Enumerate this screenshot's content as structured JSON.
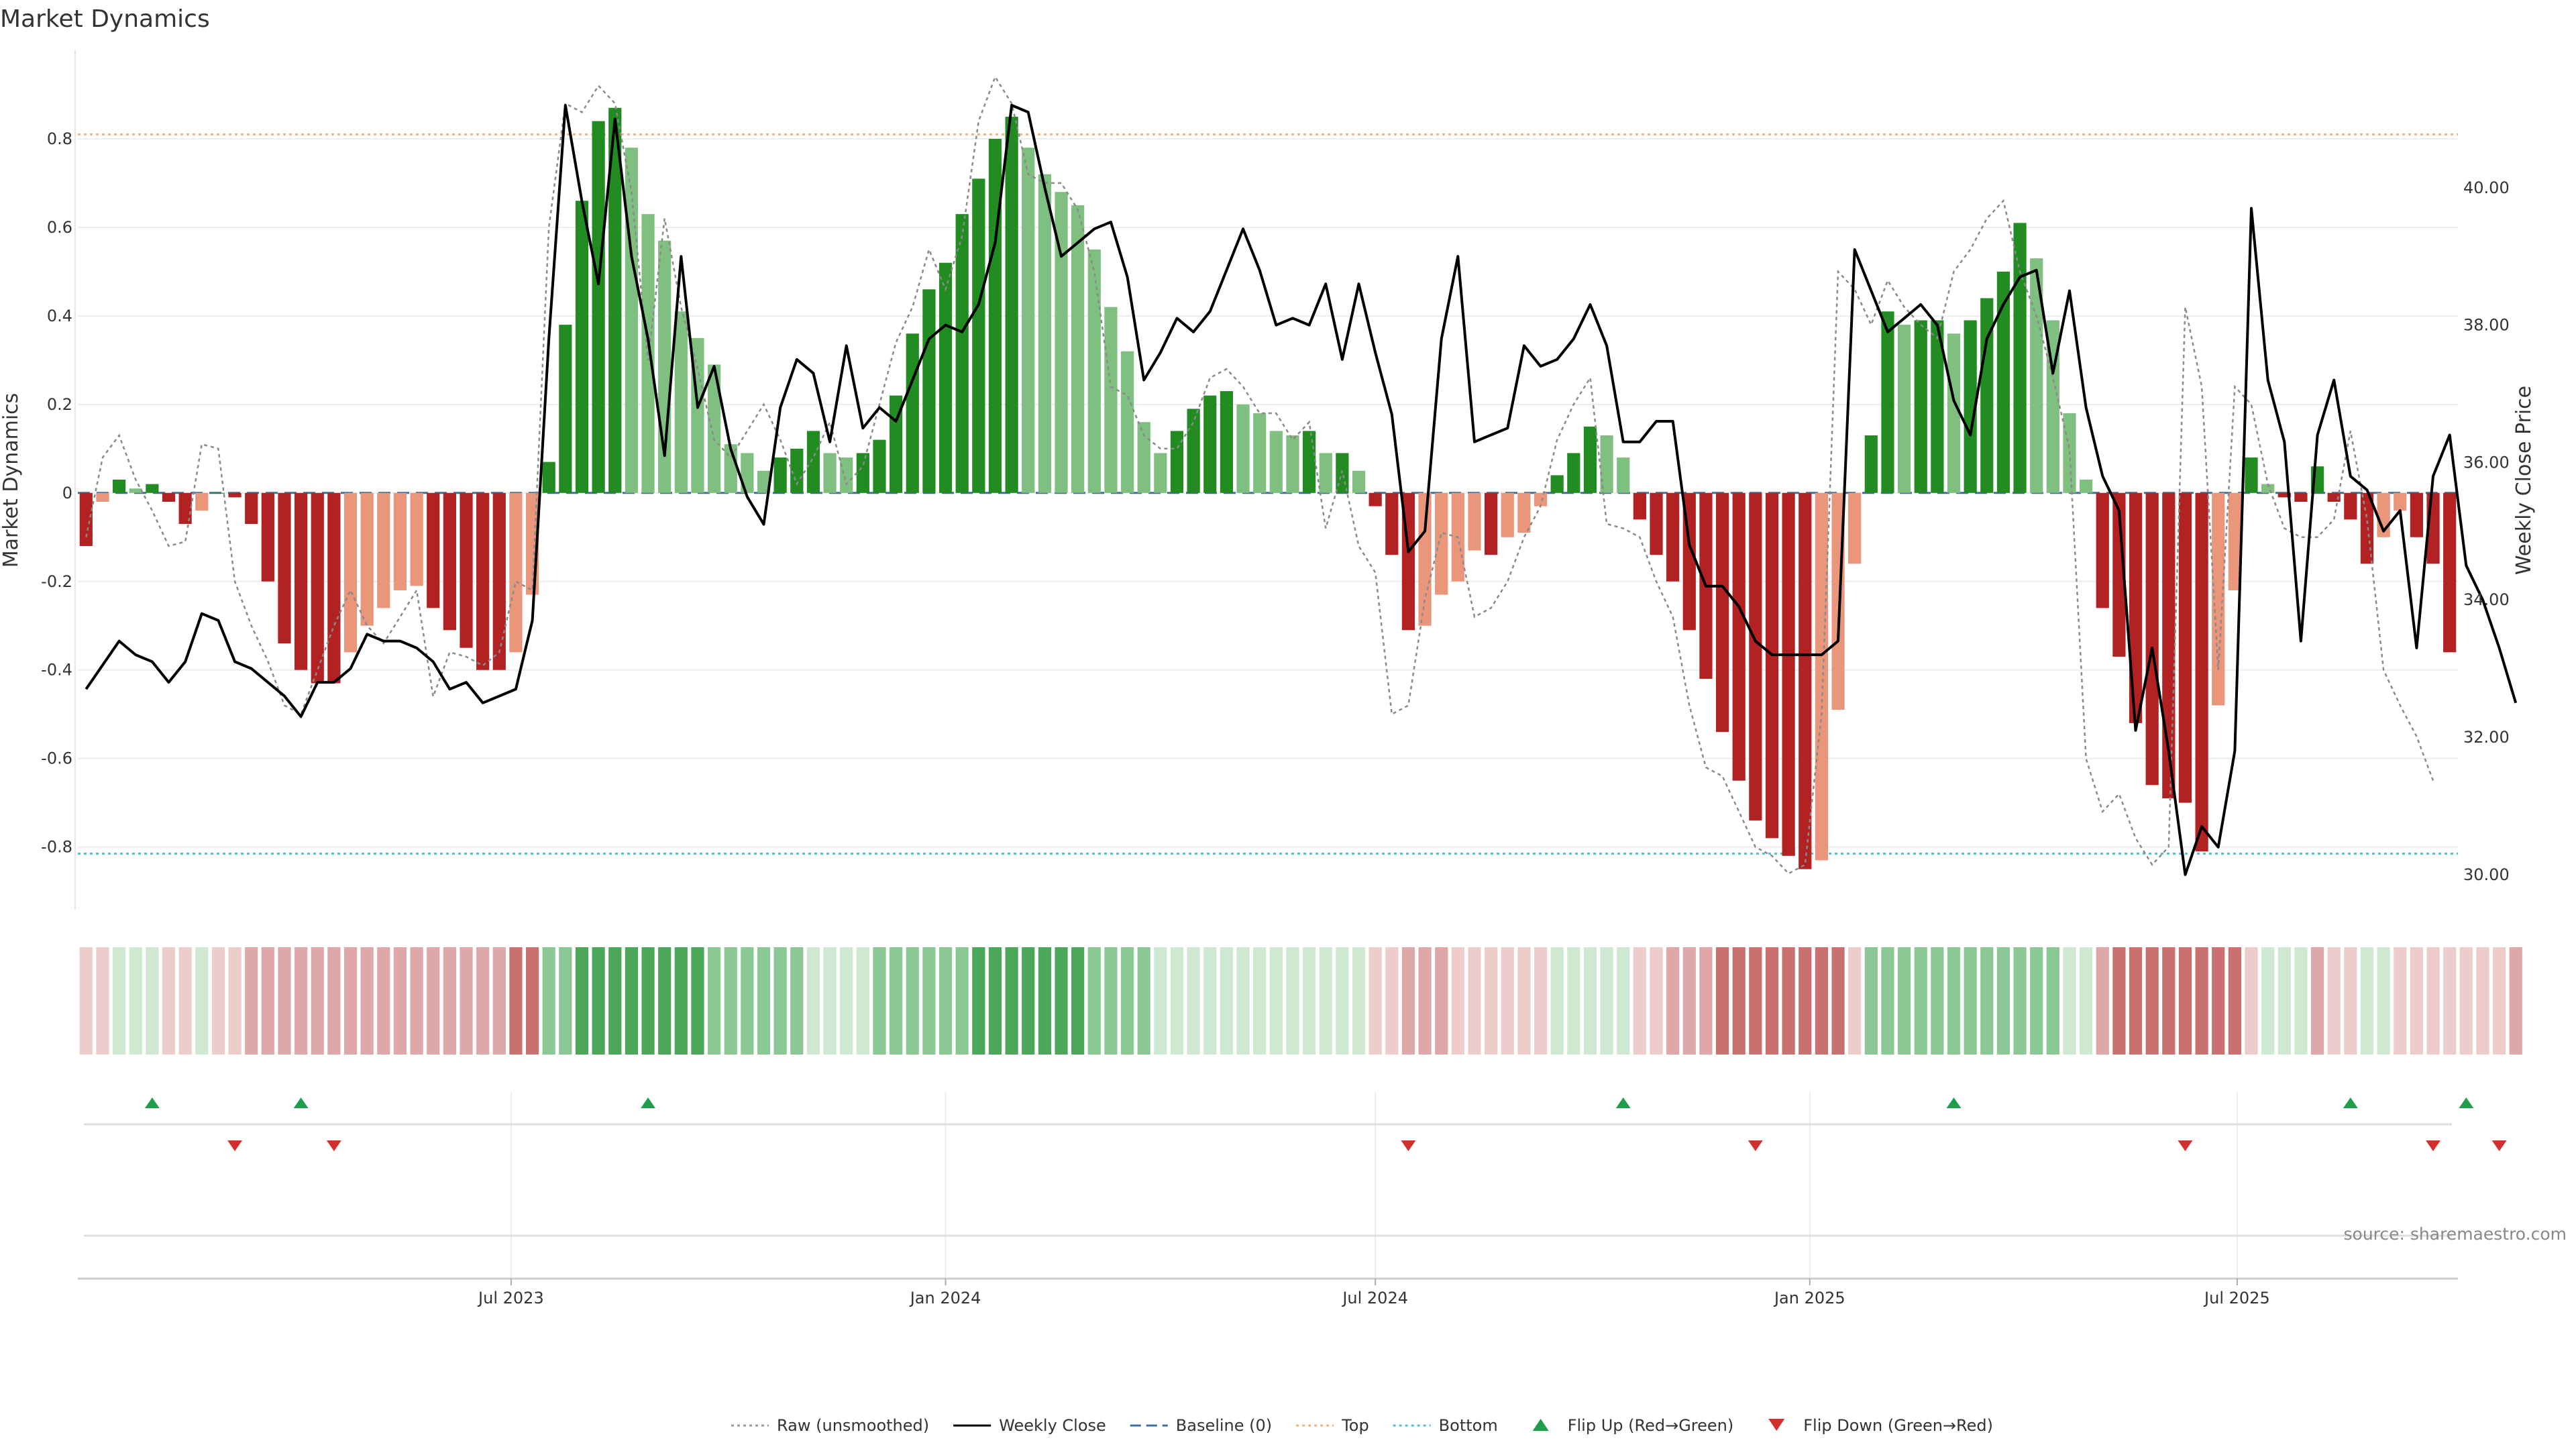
{
  "chart_data": {
    "type": "bar",
    "title": "Market Dynamics",
    "ylabel": "Market Dynamics",
    "y2label": "Weekly Close Price",
    "ylim": [
      -0.94,
      1.0
    ],
    "y2lim": [
      29.5,
      42.0
    ],
    "yticks": [
      "-0.8",
      "-0.6",
      "-0.4",
      "-0.2",
      "0",
      "0.2",
      "0.4",
      "0.6",
      "0.8"
    ],
    "y2ticks": [
      "30.00",
      "32.00",
      "34.00",
      "36.00",
      "38.00",
      "40.00"
    ],
    "x_start": "2023-01-02",
    "x_end": "2025-10-27",
    "xticks": [
      {
        "label": "Jul 2023",
        "date": "2023-07-01"
      },
      {
        "label": "Jan 2024",
        "date": "2024-01-01"
      },
      {
        "label": "Jul 2024",
        "date": "2024-07-01"
      },
      {
        "label": "Jan 2025",
        "date": "2025-01-01"
      },
      {
        "label": "Jul 2025",
        "date": "2025-07-01"
      }
    ],
    "top_line": 0.81,
    "bottom_line": -0.815,
    "baseline": 0,
    "grid": true,
    "legend_position": "bottom-center",
    "values": [
      -0.12,
      -0.02,
      0.03,
      0.01,
      0.02,
      -0.02,
      -0.07,
      -0.04,
      0,
      -0.01,
      -0.07,
      -0.2,
      -0.34,
      -0.4,
      -0.43,
      -0.43,
      -0.36,
      -0.3,
      -0.26,
      -0.22,
      -0.21,
      -0.26,
      -0.31,
      -0.35,
      -0.4,
      -0.4,
      -0.36,
      -0.23,
      0.07,
      0.38,
      0.66,
      0.84,
      0.87,
      0.78,
      0.63,
      0.57,
      0.41,
      0.35,
      0.29,
      0.11,
      0.09,
      0.05,
      0.08,
      0.1,
      0.14,
      0.09,
      0.08,
      0.09,
      0.12,
      0.22,
      0.36,
      0.46,
      0.52,
      0.63,
      0.71,
      0.8,
      0.85,
      0.78,
      0.72,
      0.68,
      0.65,
      0.55,
      0.42,
      0.32,
      0.16,
      0.09,
      0.14,
      0.19,
      0.22,
      0.23,
      0.2,
      0.18,
      0.14,
      0.13,
      0.14,
      0.09,
      0.09,
      0.05,
      -0.03,
      -0.14,
      -0.31,
      -0.3,
      -0.23,
      -0.2,
      -0.13,
      -0.14,
      -0.1,
      -0.09,
      -0.03,
      0.04,
      0.09,
      0.15,
      0.13,
      0.08,
      -0.06,
      -0.14,
      -0.2,
      -0.31,
      -0.42,
      -0.54,
      -0.65,
      -0.74,
      -0.78,
      -0.82,
      -0.85,
      -0.83,
      -0.49,
      -0.16,
      0.13,
      0.41,
      0.38,
      0.39,
      0.39,
      0.36,
      0.39,
      0.44,
      0.5,
      0.61,
      0.53,
      0.39,
      0.18,
      0.03,
      -0.26,
      -0.37,
      -0.52,
      -0.66,
      -0.69,
      -0.7,
      -0.81,
      -0.48,
      -0.22,
      0.08,
      0.02,
      -0.01,
      -0.02,
      0.06,
      -0.02,
      -0.06,
      -0.16,
      -0.1,
      -0.04,
      -0.1,
      -0.16,
      -0.36
    ],
    "band_states": [
      "rl",
      "rl",
      "gl",
      "gl",
      "gl",
      "rl",
      "rl",
      "gl",
      "rl",
      "rl",
      "rm",
      "rm",
      "rm",
      "rm",
      "rm",
      "rm",
      "rm",
      "rm",
      "rm",
      "rm",
      "rm",
      "rm",
      "rm",
      "rm",
      "rm",
      "rm",
      "rd",
      "rd",
      "gm",
      "gm",
      "gd",
      "gd",
      "gd",
      "gd",
      "gd",
      "gd",
      "gd",
      "gd",
      "gm",
      "gm",
      "gm",
      "gm",
      "gm",
      "gm",
      "gl",
      "gl",
      "gl",
      "gl",
      "gm",
      "gm",
      "gm",
      "gm",
      "gm",
      "gm",
      "gd",
      "gd",
      "gd",
      "gd",
      "gd",
      "gd",
      "gd",
      "gm",
      "gm",
      "gm",
      "gm",
      "gl",
      "gl",
      "gl",
      "gl",
      "gl",
      "gl",
      "gl",
      "gl",
      "gl",
      "gl",
      "gl",
      "gl",
      "gl",
      "rl",
      "rl",
      "rm",
      "rm",
      "rm",
      "rl",
      "rl",
      "rl",
      "rl",
      "rl",
      "rl",
      "gl",
      "gl",
      "gl",
      "gl",
      "gl",
      "rl",
      "rl",
      "rm",
      "rm",
      "rm",
      "rd",
      "rd",
      "rd",
      "rd",
      "rd",
      "rd",
      "rd",
      "rd",
      "rl",
      "gm",
      "gm",
      "gm",
      "gm",
      "gm",
      "gm",
      "gm",
      "gm",
      "gm",
      "gm",
      "gm",
      "gm",
      "gl",
      "gl",
      "rm",
      "rd",
      "rd",
      "rd",
      "rd",
      "rd",
      "rd",
      "rd",
      "rd",
      "rl",
      "gl",
      "gl",
      "gl",
      "rm",
      "rl",
      "rl",
      "gl",
      "gl",
      "rl",
      "rl",
      "rl",
      "rl",
      "rl",
      "rl",
      "rl",
      "rm"
    ],
    "weekly_close": [
      [
        0,
        32.7
      ],
      [
        2,
        33.4
      ],
      [
        3,
        33.2
      ],
      [
        4,
        33.1
      ],
      [
        5,
        32.8
      ],
      [
        6,
        33.1
      ],
      [
        7,
        33.8
      ],
      [
        8,
        33.7
      ],
      [
        9,
        33.1
      ],
      [
        10,
        33.0
      ],
      [
        12,
        32.6
      ],
      [
        13,
        32.3
      ],
      [
        14,
        32.8
      ],
      [
        15,
        32.8
      ],
      [
        16,
        33.0
      ],
      [
        17,
        33.5
      ],
      [
        18,
        33.4
      ],
      [
        19,
        33.4
      ],
      [
        20,
        33.3
      ],
      [
        21,
        33.1
      ],
      [
        22,
        32.7
      ],
      [
        23,
        32.8
      ],
      [
        24,
        32.5
      ],
      [
        25,
        32.6
      ],
      [
        26,
        32.7
      ],
      [
        27,
        33.7
      ],
      [
        28,
        37.8
      ],
      [
        29,
        41.2
      ],
      [
        30,
        39.8
      ],
      [
        31,
        38.6
      ],
      [
        32,
        41.0
      ],
      [
        33,
        39.0
      ],
      [
        34,
        37.8
      ],
      [
        35,
        36.1
      ],
      [
        36,
        39.0
      ],
      [
        37,
        36.8
      ],
      [
        38,
        37.4
      ],
      [
        39,
        36.2
      ],
      [
        40,
        35.5
      ],
      [
        41,
        35.1
      ],
      [
        42,
        36.8
      ],
      [
        43,
        37.5
      ],
      [
        44,
        37.3
      ],
      [
        45,
        36.3
      ],
      [
        46,
        37.7
      ],
      [
        47,
        36.5
      ],
      [
        48,
        36.8
      ],
      [
        49,
        36.6
      ],
      [
        50,
        37.2
      ],
      [
        51,
        37.8
      ],
      [
        52,
        38.0
      ],
      [
        53,
        37.9
      ],
      [
        54,
        38.3
      ],
      [
        55,
        39.2
      ],
      [
        56,
        41.2
      ],
      [
        57,
        41.1
      ],
      [
        58,
        40.0
      ],
      [
        59,
        39.0
      ],
      [
        60,
        39.2
      ],
      [
        61,
        39.4
      ],
      [
        62,
        39.5
      ],
      [
        63,
        38.7
      ],
      [
        64,
        37.2
      ],
      [
        65,
        37.6
      ],
      [
        66,
        38.1
      ],
      [
        67,
        37.9
      ],
      [
        68,
        38.2
      ],
      [
        69,
        38.8
      ],
      [
        70,
        39.4
      ],
      [
        71,
        38.8
      ],
      [
        72,
        38.0
      ],
      [
        73,
        38.1
      ],
      [
        74,
        38.0
      ],
      [
        75,
        38.6
      ],
      [
        76,
        37.5
      ],
      [
        77,
        38.6
      ],
      [
        78,
        37.6
      ],
      [
        79,
        36.7
      ],
      [
        80,
        34.7
      ],
      [
        81,
        35.0
      ],
      [
        82,
        37.8
      ],
      [
        83,
        39.0
      ],
      [
        84,
        36.3
      ],
      [
        85,
        36.4
      ],
      [
        86,
        36.5
      ],
      [
        87,
        37.7
      ],
      [
        88,
        37.4
      ],
      [
        89,
        37.5
      ],
      [
        90,
        37.8
      ],
      [
        91,
        38.3
      ],
      [
        92,
        37.7
      ],
      [
        93,
        36.3
      ],
      [
        94,
        36.3
      ],
      [
        95,
        36.6
      ],
      [
        96,
        36.6
      ],
      [
        97,
        34.8
      ],
      [
        98,
        34.2
      ],
      [
        99,
        34.2
      ],
      [
        100,
        33.9
      ],
      [
        101,
        33.4
      ],
      [
        102,
        33.2
      ],
      [
        103,
        33.2
      ],
      [
        104,
        33.2
      ],
      [
        105,
        33.2
      ],
      [
        106,
        33.4
      ],
      [
        107,
        39.1
      ],
      [
        108,
        38.5
      ],
      [
        109,
        37.9
      ],
      [
        110,
        38.1
      ],
      [
        111,
        38.3
      ],
      [
        112,
        38.0
      ],
      [
        113,
        36.9
      ],
      [
        114,
        36.4
      ],
      [
        115,
        37.8
      ],
      [
        116,
        38.3
      ],
      [
        117,
        38.7
      ],
      [
        118,
        38.8
      ],
      [
        119,
        37.3
      ],
      [
        120,
        38.5
      ],
      [
        121,
        36.8
      ],
      [
        122,
        35.8
      ],
      [
        123,
        35.3
      ],
      [
        124,
        32.1
      ],
      [
        125,
        33.3
      ],
      [
        126,
        31.8
      ],
      [
        127,
        30.0
      ],
      [
        128,
        30.7
      ],
      [
        129,
        30.4
      ],
      [
        130,
        31.8
      ],
      [
        131,
        39.7
      ],
      [
        132,
        37.2
      ],
      [
        133,
        36.3
      ],
      [
        134,
        33.4
      ],
      [
        135,
        36.4
      ],
      [
        136,
        37.2
      ],
      [
        137,
        35.8
      ],
      [
        138,
        35.6
      ],
      [
        139,
        35.0
      ],
      [
        140,
        35.3
      ],
      [
        141,
        33.3
      ],
      [
        142,
        35.8
      ],
      [
        143,
        36.4
      ],
      [
        144,
        34.5
      ],
      [
        145,
        34.0
      ],
      [
        146,
        33.3
      ],
      [
        147,
        32.5
      ]
    ],
    "raw_unsmoothed": [
      [
        0,
        -0.1
      ],
      [
        1,
        0.08
      ],
      [
        2,
        0.13
      ],
      [
        3,
        0.03
      ],
      [
        4,
        -0.04
      ],
      [
        5,
        -0.12
      ],
      [
        6,
        -0.11
      ],
      [
        7,
        0.11
      ],
      [
        8,
        0.1
      ],
      [
        9,
        -0.2
      ],
      [
        10,
        -0.3
      ],
      [
        11,
        -0.38
      ],
      [
        12,
        -0.48
      ],
      [
        13,
        -0.5
      ],
      [
        14,
        -0.4
      ],
      [
        15,
        -0.3
      ],
      [
        16,
        -0.22
      ],
      [
        17,
        -0.3
      ],
      [
        18,
        -0.34
      ],
      [
        19,
        -0.28
      ],
      [
        20,
        -0.22
      ],
      [
        21,
        -0.46
      ],
      [
        22,
        -0.36
      ],
      [
        23,
        -0.37
      ],
      [
        24,
        -0.39
      ],
      [
        25,
        -0.36
      ],
      [
        26,
        -0.2
      ],
      [
        27,
        -0.22
      ],
      [
        28,
        0.6
      ],
      [
        29,
        0.88
      ],
      [
        30,
        0.86
      ],
      [
        31,
        0.92
      ],
      [
        32,
        0.88
      ],
      [
        33,
        0.68
      ],
      [
        34,
        0.3
      ],
      [
        35,
        0.62
      ],
      [
        36,
        0.42
      ],
      [
        37,
        0.28
      ],
      [
        38,
        0.12
      ],
      [
        39,
        0.08
      ],
      [
        40,
        0.14
      ],
      [
        41,
        0.2
      ],
      [
        42,
        0.12
      ],
      [
        43,
        0.02
      ],
      [
        44,
        0.08
      ],
      [
        45,
        0.16
      ],
      [
        46,
        0.02
      ],
      [
        47,
        0.06
      ],
      [
        48,
        0.2
      ],
      [
        49,
        0.34
      ],
      [
        50,
        0.42
      ],
      [
        51,
        0.55
      ],
      [
        52,
        0.46
      ],
      [
        53,
        0.58
      ],
      [
        54,
        0.84
      ],
      [
        55,
        0.94
      ],
      [
        56,
        0.88
      ],
      [
        57,
        0.72
      ],
      [
        58,
        0.7
      ],
      [
        59,
        0.7
      ],
      [
        60,
        0.64
      ],
      [
        61,
        0.5
      ],
      [
        62,
        0.24
      ],
      [
        63,
        0.22
      ],
      [
        64,
        0.13
      ],
      [
        65,
        0.1
      ],
      [
        66,
        0.1
      ],
      [
        67,
        0.16
      ],
      [
        68,
        0.26
      ],
      [
        69,
        0.28
      ],
      [
        70,
        0.24
      ],
      [
        71,
        0.18
      ],
      [
        72,
        0.18
      ],
      [
        73,
        0.12
      ],
      [
        74,
        0.16
      ],
      [
        75,
        -0.08
      ],
      [
        76,
        0.05
      ],
      [
        77,
        -0.12
      ],
      [
        78,
        -0.18
      ],
      [
        79,
        -0.5
      ],
      [
        80,
        -0.48
      ],
      [
        81,
        -0.24
      ],
      [
        82,
        -0.09
      ],
      [
        83,
        -0.1
      ],
      [
        84,
        -0.28
      ],
      [
        85,
        -0.26
      ],
      [
        86,
        -0.2
      ],
      [
        87,
        -0.1
      ],
      [
        88,
        -0.03
      ],
      [
        89,
        0.12
      ],
      [
        90,
        0.2
      ],
      [
        91,
        0.26
      ],
      [
        92,
        -0.07
      ],
      [
        93,
        -0.08
      ],
      [
        94,
        -0.1
      ],
      [
        95,
        -0.2
      ],
      [
        96,
        -0.28
      ],
      [
        97,
        -0.48
      ],
      [
        98,
        -0.62
      ],
      [
        99,
        -0.64
      ],
      [
        100,
        -0.72
      ],
      [
        101,
        -0.8
      ],
      [
        102,
        -0.82
      ],
      [
        103,
        -0.86
      ],
      [
        104,
        -0.84
      ],
      [
        105,
        -0.5
      ],
      [
        106,
        0.5
      ],
      [
        107,
        0.46
      ],
      [
        108,
        0.38
      ],
      [
        109,
        0.48
      ],
      [
        110,
        0.42
      ],
      [
        111,
        0.38
      ],
      [
        112,
        0.35
      ],
      [
        113,
        0.5
      ],
      [
        114,
        0.55
      ],
      [
        115,
        0.62
      ],
      [
        116,
        0.66
      ],
      [
        117,
        0.5
      ],
      [
        118,
        0.4
      ],
      [
        119,
        0.26
      ],
      [
        120,
        0.1
      ],
      [
        121,
        -0.6
      ],
      [
        122,
        -0.72
      ],
      [
        123,
        -0.68
      ],
      [
        124,
        -0.78
      ],
      [
        125,
        -0.84
      ],
      [
        126,
        -0.8
      ],
      [
        127,
        0.42
      ],
      [
        128,
        0.24
      ],
      [
        129,
        -0.4
      ],
      [
        130,
        0.24
      ],
      [
        131,
        0.2
      ],
      [
        132,
        0.02
      ],
      [
        133,
        -0.08
      ],
      [
        134,
        -0.1
      ],
      [
        135,
        -0.1
      ],
      [
        136,
        -0.06
      ],
      [
        137,
        0.14
      ],
      [
        138,
        -0.06
      ],
      [
        139,
        -0.4
      ],
      [
        140,
        -0.48
      ],
      [
        141,
        -0.55
      ],
      [
        142,
        -0.65
      ]
    ],
    "flip_up_dates": [
      "2023-01-30",
      "2023-04-03",
      "2023-08-28",
      "2024-10-14",
      "2025-03-03",
      "2025-08-18",
      "2025-10-06"
    ],
    "flip_down_dates": [
      "2023-03-06",
      "2023-04-17",
      "2024-07-15",
      "2024-12-09",
      "2025-06-09",
      "2025-09-22",
      "2025-10-20"
    ],
    "legend": [
      {
        "label": "Raw (unsmoothed)",
        "marker": "dotted-line",
        "color": "#999999"
      },
      {
        "label": "Weekly Close",
        "marker": "solid-line",
        "color": "#000000"
      },
      {
        "label": "Baseline (0)",
        "marker": "dashed-line",
        "color": "#3f6f9f"
      },
      {
        "label": "Top",
        "marker": "dotted-line",
        "color": "#f2b27c"
      },
      {
        "label": "Bottom",
        "marker": "dotted-line",
        "color": "#4fc3d6"
      },
      {
        "label": "Flip Up (Red→Green)",
        "marker": "triangle-up",
        "color": "#1e9e4a"
      },
      {
        "label": "Flip Down (Green→Red)",
        "marker": "triangle-down",
        "color": "#d32f2f"
      }
    ],
    "source_text": "source: sharemaestro.com",
    "colors": {
      "green_dark": "#228b22",
      "green_light": "#7fbf7f",
      "red_dark": "#b22222",
      "red_light": "#e9967a",
      "close_line": "#000000",
      "raw_line": "#8a8a8a",
      "top_line": "#f2b27c",
      "bottom_line": "#4fc3d6",
      "baseline": "#3f6f9f",
      "band": {
        "gl": "#cfe8d2",
        "gm": "#8cc896",
        "gd": "#4da75a",
        "rl": "#edcccc",
        "rm": "#dfa8a8",
        "rd": "#c97070"
      }
    }
  }
}
